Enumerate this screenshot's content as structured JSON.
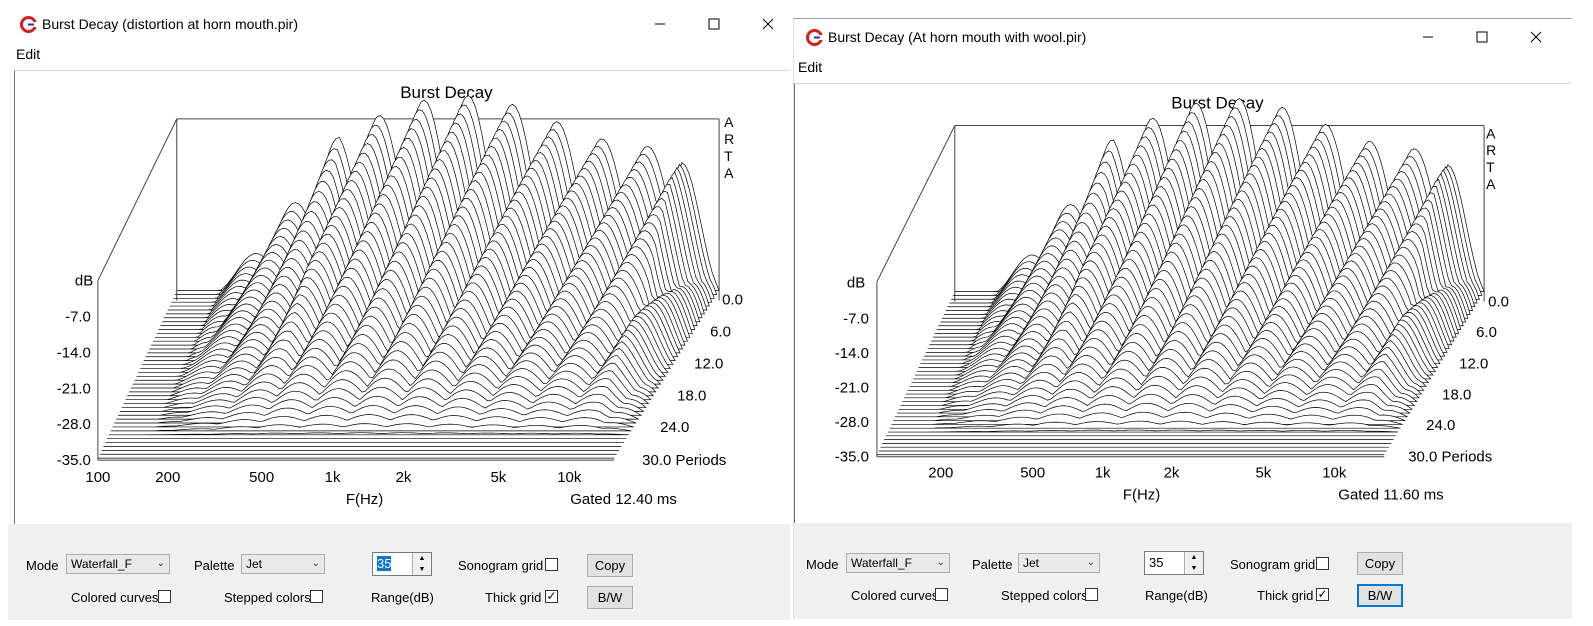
{
  "windows": [
    {
      "title": "Burst Decay  (distortion at horn mouth.pir)",
      "menu": "Edit",
      "chart": {
        "title": "Burst Decay",
        "watermark": [
          "A",
          "R",
          "T",
          "A"
        ],
        "db_label": "dB",
        "y_ticks": [
          "-7.0",
          "-14.0",
          "-21.0",
          "-28.0",
          "-35.0"
        ],
        "x_ticks": [
          "100",
          "200",
          "500",
          "1k",
          "2k",
          "5k",
          "10k"
        ],
        "xlabel": "F(Hz)",
        "z_ticks": [
          "0.0",
          "6.0",
          "12.0",
          "18.0",
          "24.0",
          "30.0 Periods"
        ],
        "gated": "Gated 12.40 ms"
      },
      "controls": {
        "mode_label": "Mode",
        "mode_value": "Waterfall_F",
        "palette_label": "Palette",
        "palette_value": "Jet",
        "range_value": "35",
        "range_label": "Range(dB)",
        "sonogram_label": "Sonogram grid",
        "copy_label": "Copy",
        "colored_label": "Colored curves",
        "stepped_label": "Stepped colors",
        "thick_label": "Thick grid",
        "bw_label": "B/W"
      }
    },
    {
      "title": "Burst Decay  (At horn mouth with wool.pir)",
      "menu": "Edit",
      "chart": {
        "title": "Burst Decay",
        "watermark": [
          "A",
          "R",
          "T",
          "A"
        ],
        "db_label": "dB",
        "y_ticks": [
          "-7.0",
          "-14.0",
          "-21.0",
          "-28.0",
          "-35.0"
        ],
        "x_ticks": [
          "200",
          "500",
          "1k",
          "2k",
          "5k",
          "10k"
        ],
        "xlabel": "F(Hz)",
        "z_ticks": [
          "0.0",
          "6.0",
          "12.0",
          "18.0",
          "24.0",
          "30.0 Periods"
        ],
        "gated": "Gated 11.60 ms"
      },
      "controls": {
        "mode_label": "Mode",
        "mode_value": "Waterfall_F",
        "palette_label": "Palette",
        "palette_value": "Jet",
        "range_value": "35",
        "range_label": "Range(dB)",
        "sonogram_label": "Sonogram grid",
        "copy_label": "Copy",
        "colored_label": "Colored curves",
        "stepped_label": "Stepped colors",
        "thick_label": "Thick grid",
        "bw_label": "B/W"
      }
    }
  ],
  "colors": {
    "app_icon_red": "#d42020",
    "window_bg": "#ffffff",
    "panel_bg": "#f0f0f0",
    "focus_blue": "#0078d7"
  },
  "icons": {
    "minimize": "minimize-icon",
    "maximize": "maximize-icon",
    "close": "close-icon",
    "app": "arta-app-icon"
  }
}
